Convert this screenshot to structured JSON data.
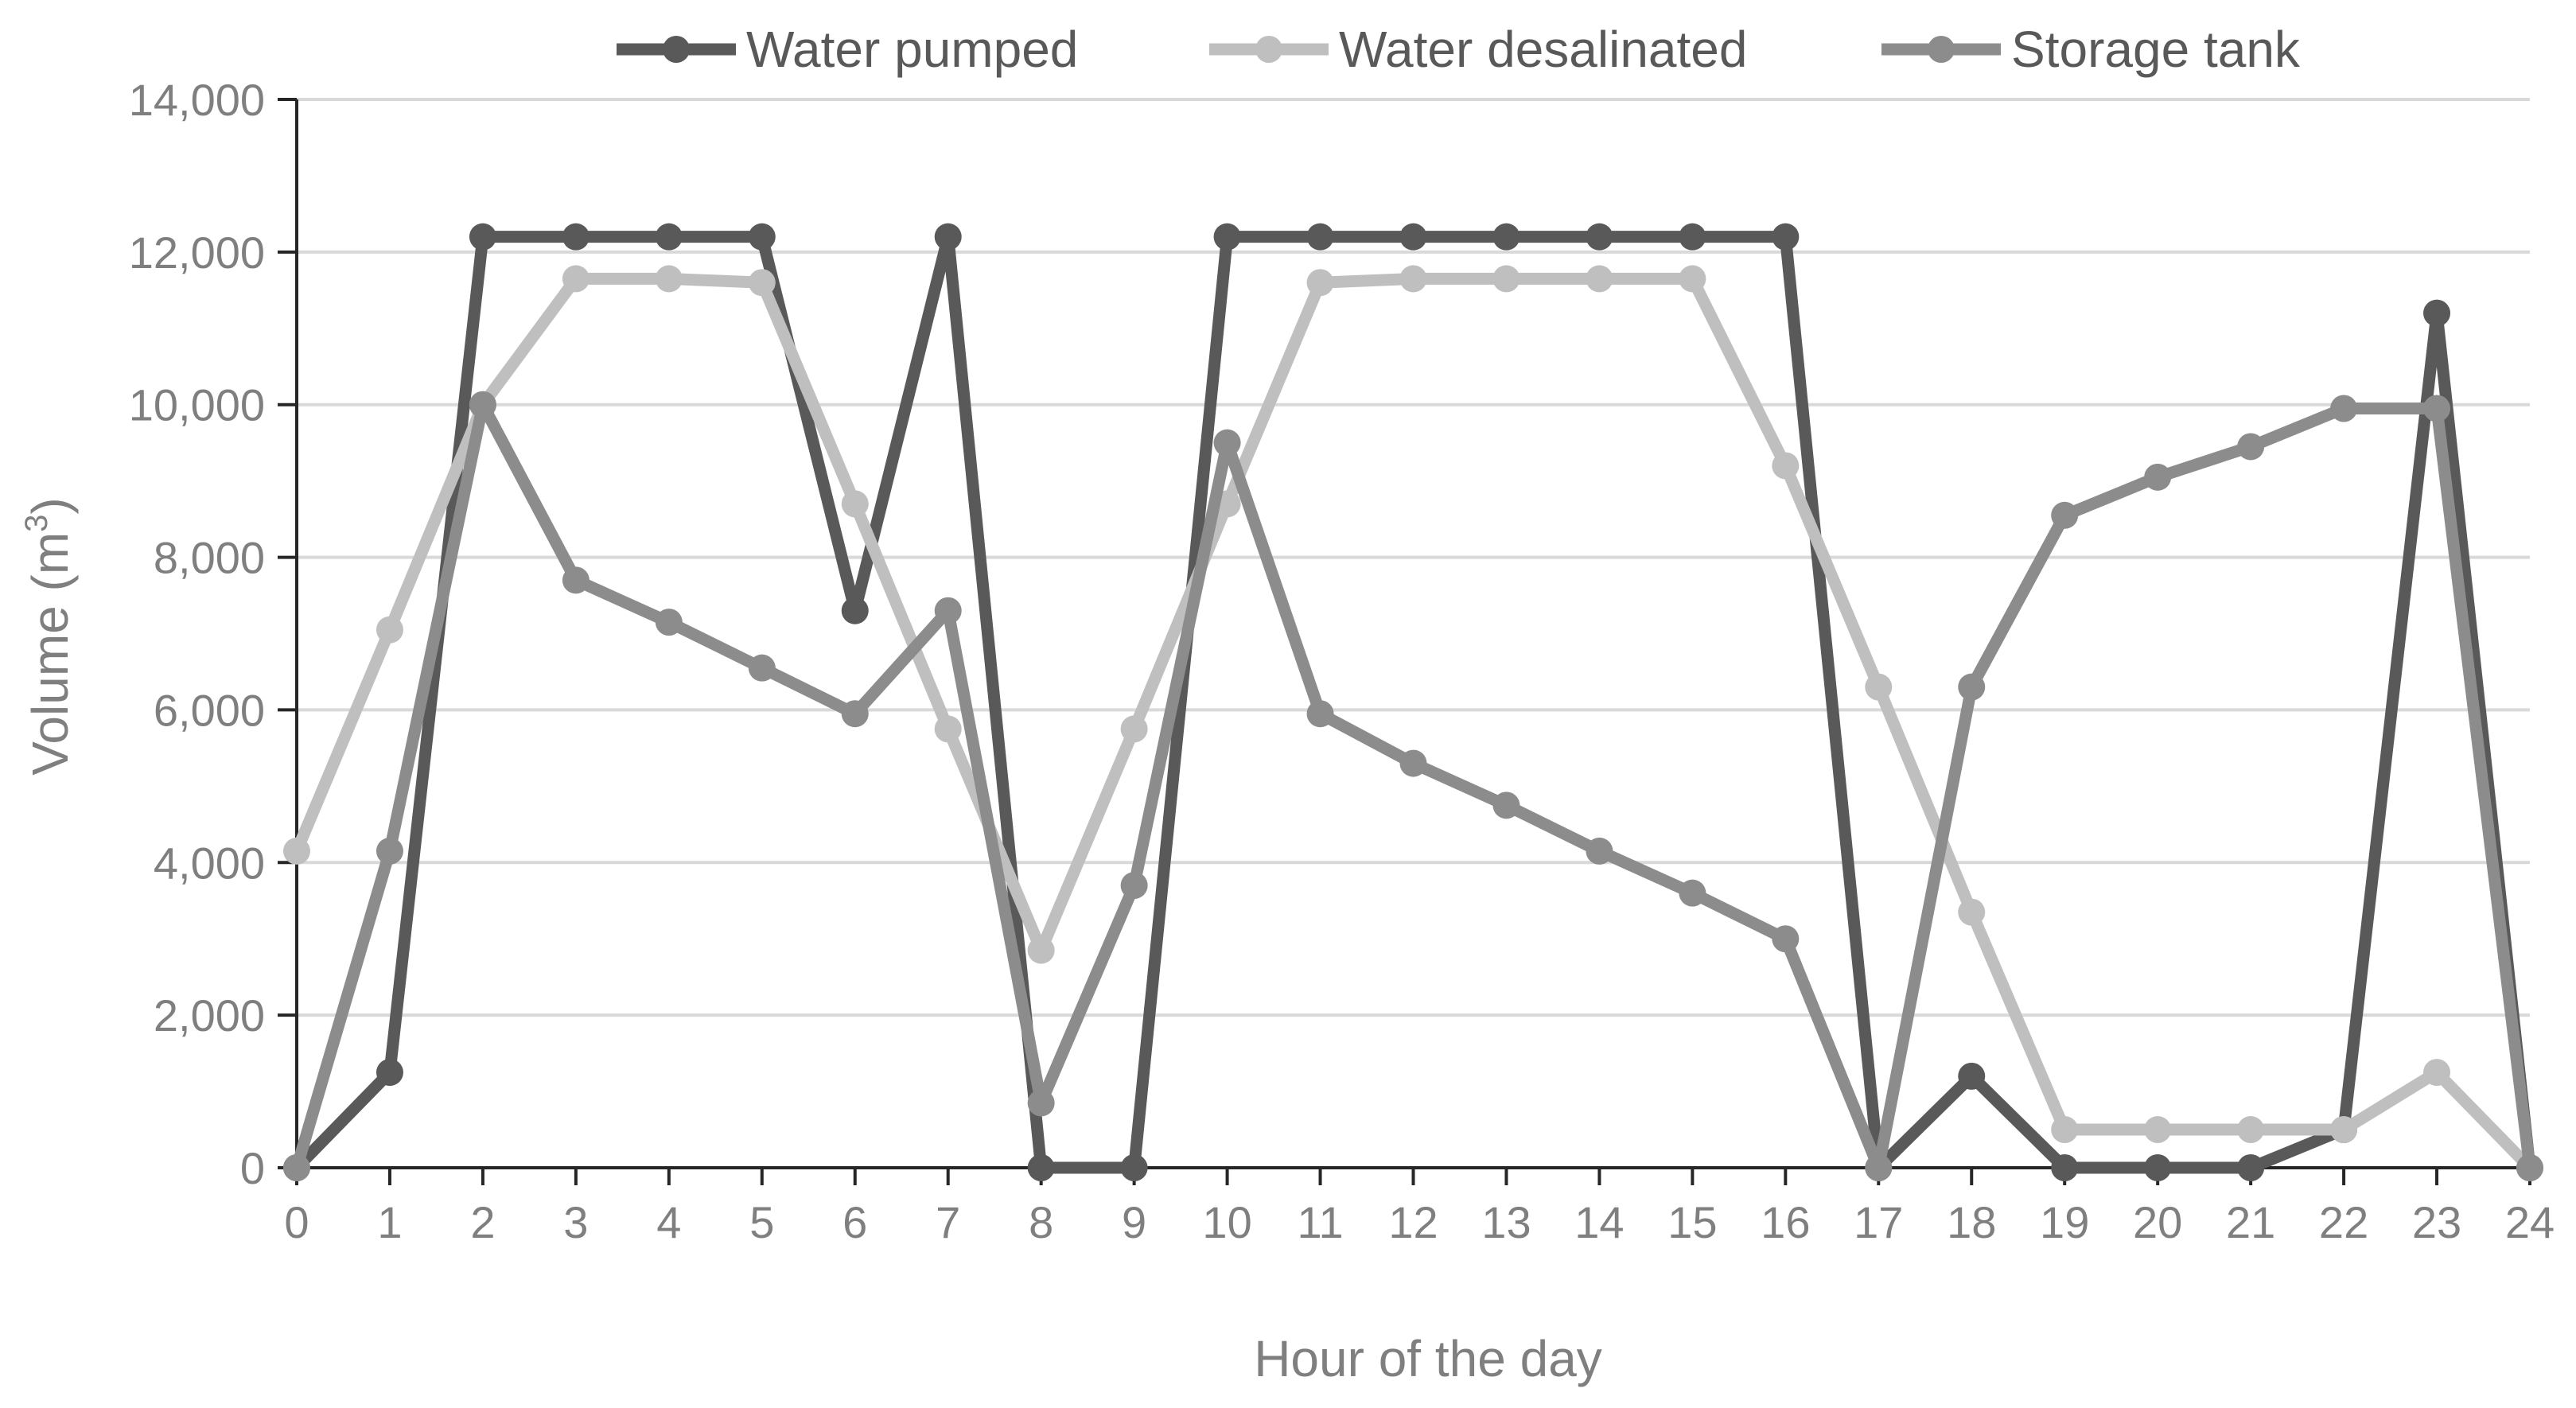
{
  "chart_data": {
    "type": "line",
    "title": "",
    "xlabel": "Hour of the day",
    "ylabel": "Volume (m",
    "ylabel_superscript": "3",
    "ylabel_close": ")",
    "x": [
      0,
      1,
      2,
      3,
      4,
      5,
      6,
      7,
      8,
      9,
      10,
      11,
      12,
      13,
      14,
      15,
      16,
      17,
      18,
      19,
      20,
      21,
      22,
      23,
      24
    ],
    "x_tick_labels": [
      "0",
      "1",
      "2",
      "3",
      "4",
      "5",
      "6",
      "7",
      "8",
      "9",
      "10",
      "11",
      "12",
      "13",
      "14",
      "15",
      "16",
      "17",
      "18",
      "19",
      "20",
      "21",
      "22",
      "23",
      "24"
    ],
    "y_ticks": [
      0,
      2000,
      4000,
      6000,
      8000,
      10000,
      12000,
      14000
    ],
    "y_tick_labels": [
      "0",
      "2,000",
      "4,000",
      "6,000",
      "8,000",
      "10,000",
      "12,000",
      "14,000"
    ],
    "ylim": [
      0,
      14000
    ],
    "grid": true,
    "legend_position": "top",
    "series": [
      {
        "name": "Water pumped",
        "color": "#595959",
        "values": [
          0,
          1250,
          12200,
          12200,
          12200,
          12200,
          7300,
          12200,
          0,
          0,
          12200,
          12200,
          12200,
          12200,
          12200,
          12200,
          12200,
          0,
          1200,
          0,
          0,
          0,
          500,
          11200,
          0
        ]
      },
      {
        "name": "Water desalinated",
        "color": "#bfbfbf",
        "values": [
          4150,
          7050,
          10000,
          11650,
          11650,
          11600,
          8700,
          5750,
          2850,
          5750,
          8700,
          11600,
          11650,
          11650,
          11650,
          11650,
          9200,
          6300,
          3350,
          500,
          500,
          500,
          500,
          1250,
          0
        ]
      },
      {
        "name": "Storage tank",
        "color": "#8c8c8c",
        "values": [
          0,
          4150,
          10000,
          7700,
          7150,
          6550,
          5950,
          7300,
          850,
          3700,
          9500,
          5950,
          5300,
          4750,
          4150,
          3600,
          3000,
          0,
          6300,
          8550,
          9050,
          9450,
          9950,
          9950,
          0
        ]
      }
    ]
  }
}
